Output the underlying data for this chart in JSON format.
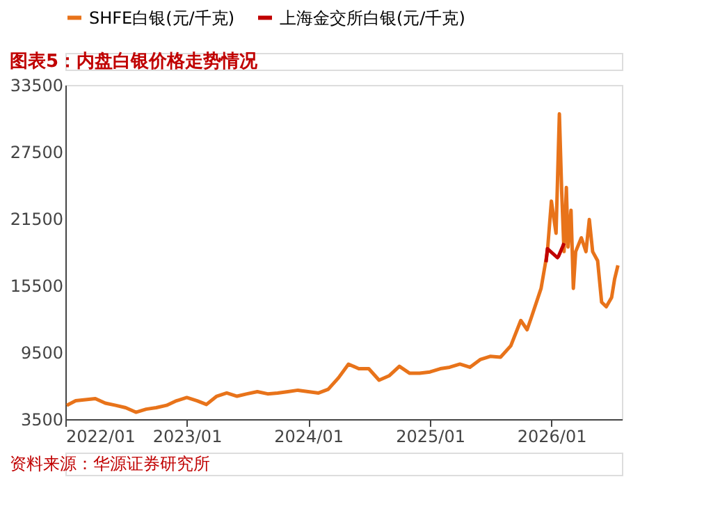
{
  "chart_data": {
    "type": "line",
    "title": "图表5：内盘白银价格走势情况",
    "annotations": [
      "资料来源：华源证券研究所"
    ],
    "xlim": [
      "2022-01",
      "2026-08"
    ],
    "xticks": [
      {
        "value": "2022-01",
        "label": "2022/01"
      },
      {
        "value": "2023-01",
        "label": "2023/01"
      },
      {
        "value": "2024-01",
        "label": "2024/01"
      },
      {
        "value": "2025-01",
        "label": "2025/01"
      },
      {
        "value": "2026-01",
        "label": "2026/01"
      }
    ],
    "ylim": [
      3500,
      33500
    ],
    "yticks": [
      {
        "value": 3500,
        "label": "3500"
      },
      {
        "value": 9500,
        "label": "9500"
      },
      {
        "value": 15500,
        "label": "15500"
      },
      {
        "value": 21500,
        "label": "21500"
      },
      {
        "value": 27500,
        "label": "27500"
      },
      {
        "value": 33500,
        "label": "33500"
      }
    ],
    "grid": false,
    "legend": "top",
    "line_style": "solid",
    "marker": "none",
    "series": [
      {
        "name": "SHFE白银(元/千克)",
        "color": "#e8731a",
        "x": [
          "2022-01-05",
          "2022-02",
          "2022-04",
          "2022-05",
          "2022-06",
          "2022-07",
          "2022-08",
          "2022-09",
          "2022-10",
          "2022-11",
          "2022-12",
          "2023-01",
          "2023-02",
          "2023-03",
          "2023-04",
          "2023-05",
          "2023-06",
          "2023-07",
          "2023-08",
          "2023-09",
          "2023-10",
          "2023-11",
          "2023-12",
          "2024-01",
          "2024-02",
          "2024-03",
          "2024-04",
          "2024-05",
          "2024-06",
          "2024-07",
          "2024-08",
          "2024-09",
          "2024-10",
          "2024-11",
          "2024-12",
          "2025-01",
          "2025-02",
          "2025-03",
          "2025-04",
          "2025-05",
          "2025-06",
          "2025-07",
          "2025-08",
          "2025-09",
          "2025-10",
          "2025-10-20",
          "2025-11",
          "2025-12",
          "2025-12-20",
          "2026-01",
          "2026-01-15",
          "2026-01-25",
          "2026-02-01",
          "2026-02-08",
          "2026-02-15",
          "2026-02-20",
          "2026-03-01",
          "2026-03-08",
          "2026-03-15",
          "2026-04-01",
          "2026-04-15",
          "2026-04-25",
          "2026-05-05",
          "2026-05-20",
          "2026-06-01",
          "2026-06-15",
          "2026-07-01",
          "2026-07-10",
          "2026-07-20"
        ],
        "values": [
          4740,
          5150,
          5350,
          4940,
          4740,
          4530,
          4120,
          4400,
          4530,
          4740,
          5150,
          5440,
          5150,
          4820,
          5560,
          5850,
          5560,
          5770,
          5970,
          5770,
          5850,
          5970,
          6100,
          5970,
          5850,
          6180,
          7210,
          8440,
          8030,
          8030,
          7000,
          7410,
          8240,
          7620,
          7620,
          7740,
          8030,
          8160,
          8440,
          8160,
          8850,
          9140,
          9060,
          10090,
          12360,
          11530,
          12560,
          15240,
          18540,
          23070,
          20190,
          30900,
          23890,
          18540,
          24300,
          18950,
          22250,
          15240,
          18540,
          19780,
          18540,
          21420,
          18540,
          17720,
          14000,
          13590,
          14420,
          16070,
          17300
        ]
      },
      {
        "name": "上海金交所白银(元/千克)",
        "color": "#c00000",
        "x": [
          "2025-12-16",
          "2025-12-20",
          "2026-01-19",
          "2026-01-22",
          "2026-02-04",
          "2026-02-08"
        ],
        "values": [
          17600,
          18800,
          18000,
          18100,
          19000,
          19300
        ]
      }
    ]
  }
}
